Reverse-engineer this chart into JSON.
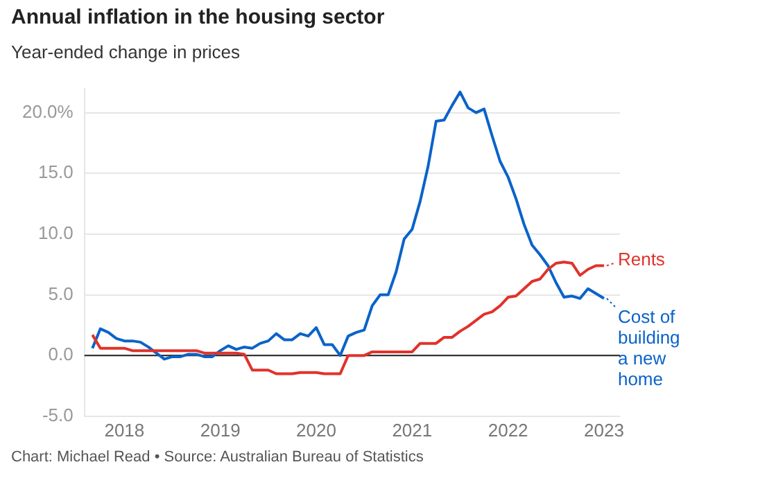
{
  "chart_data": {
    "type": "line",
    "title": "Annual inflation in the housing sector",
    "subtitle": "Year-ended change in prices",
    "x": [
      "2017-09",
      "2017-10",
      "2017-11",
      "2017-12",
      "2018-01",
      "2018-02",
      "2018-03",
      "2018-04",
      "2018-05",
      "2018-06",
      "2018-07",
      "2018-08",
      "2018-09",
      "2018-10",
      "2018-11",
      "2018-12",
      "2019-01",
      "2019-02",
      "2019-03",
      "2019-04",
      "2019-05",
      "2019-06",
      "2019-07",
      "2019-08",
      "2019-09",
      "2019-10",
      "2019-11",
      "2019-12",
      "2020-01",
      "2020-02",
      "2020-03",
      "2020-04",
      "2020-05",
      "2020-06",
      "2020-07",
      "2020-08",
      "2020-09",
      "2020-10",
      "2020-11",
      "2020-12",
      "2021-01",
      "2021-02",
      "2021-03",
      "2021-04",
      "2021-05",
      "2021-06",
      "2021-07",
      "2021-08",
      "2021-09",
      "2021-10",
      "2021-11",
      "2021-12",
      "2022-01",
      "2022-02",
      "2022-03",
      "2022-04",
      "2022-05",
      "2022-06",
      "2022-07",
      "2022-08",
      "2022-09",
      "2022-10",
      "2022-11",
      "2022-12",
      "2023-01"
    ],
    "series": [
      {
        "name": "Rents",
        "color": "#e0322b",
        "values": [
          1.7,
          0.6,
          0.6,
          0.6,
          0.6,
          0.4,
          0.4,
          0.4,
          0.4,
          0.4,
          0.4,
          0.4,
          0.4,
          0.4,
          0.2,
          0.2,
          0.2,
          0.2,
          0.2,
          0.1,
          -1.2,
          -1.2,
          -1.2,
          -1.5,
          -1.5,
          -1.5,
          -1.4,
          -1.4,
          -1.4,
          -1.5,
          -1.5,
          -1.5,
          0.0,
          0.0,
          0.0,
          0.3,
          0.3,
          0.3,
          0.3,
          0.3,
          0.3,
          1.0,
          1.0,
          1.0,
          1.5,
          1.5,
          2.0,
          2.4,
          2.9,
          3.4,
          3.6,
          4.1,
          4.8,
          4.9,
          5.5,
          6.1,
          6.3,
          7.1,
          7.6,
          7.7,
          7.6,
          6.6,
          7.1,
          7.4,
          7.4
        ]
      },
      {
        "name": "Cost of building a new home",
        "color": "#0a63c9",
        "values": [
          0.6,
          2.2,
          1.9,
          1.4,
          1.2,
          1.2,
          1.1,
          0.7,
          0.2,
          -0.3,
          -0.1,
          -0.1,
          0.1,
          0.1,
          -0.1,
          -0.1,
          0.4,
          0.8,
          0.5,
          0.7,
          0.6,
          1.0,
          1.2,
          1.8,
          1.3,
          1.3,
          1.8,
          1.6,
          2.3,
          0.9,
          0.9,
          0.0,
          1.6,
          1.9,
          2.1,
          4.1,
          5.0,
          5.0,
          6.9,
          9.6,
          10.4,
          12.7,
          15.6,
          19.3,
          19.4,
          20.6,
          21.7,
          20.4,
          20.0,
          20.3,
          18.1,
          16.0,
          14.7,
          12.9,
          10.8,
          9.1,
          8.3,
          7.4,
          6.0,
          4.8,
          4.9,
          4.7,
          5.5,
          5.1,
          4.7
        ]
      }
    ],
    "xlim": [
      "2017-08",
      "2023-03"
    ],
    "xticks": [
      {
        "value": "2018",
        "label": "2018"
      },
      {
        "value": "2019",
        "label": "2019"
      },
      {
        "value": "2020",
        "label": "2020"
      },
      {
        "value": "2021",
        "label": "2021"
      },
      {
        "value": "2022",
        "label": "2022"
      },
      {
        "value": "2023",
        "label": "2023"
      }
    ],
    "ylim": [
      -5,
      22
    ],
    "yticks": [
      {
        "value": -5,
        "label": "-5.0"
      },
      {
        "value": 0,
        "label": "0.0"
      },
      {
        "value": 5,
        "label": "5.0"
      },
      {
        "value": 10,
        "label": "10.0"
      },
      {
        "value": 15,
        "label": "15.0"
      },
      {
        "value": 20,
        "label": "20.0%"
      }
    ],
    "grid": "y",
    "legend": "right",
    "marker": "none",
    "line_style": "solid",
    "ref_lines": [
      {
        "axis": "y",
        "value": 0,
        "color": "#333333"
      }
    ],
    "annotations": [
      "Chart: Michael Read • Source: Australian Bureau of Statistics"
    ]
  }
}
